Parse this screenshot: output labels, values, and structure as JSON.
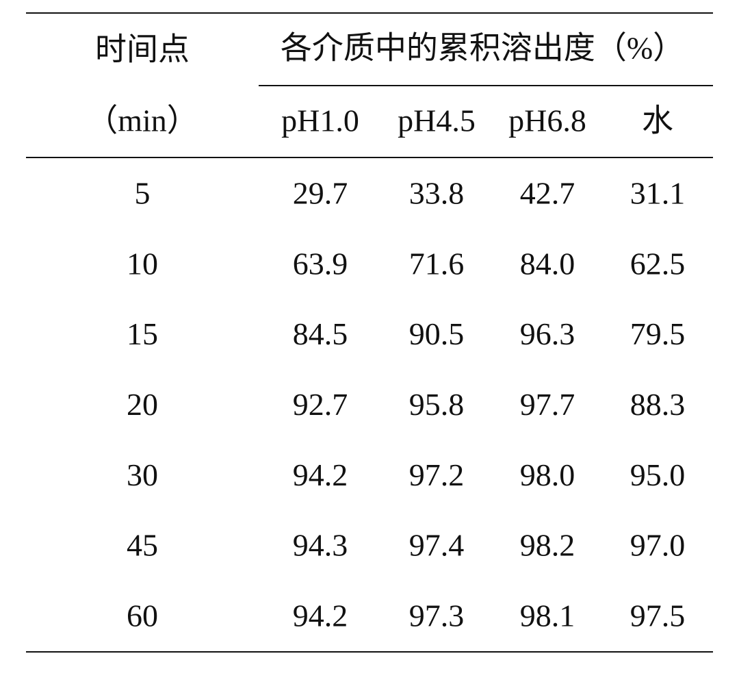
{
  "table": {
    "header": {
      "time_label": "时间点",
      "time_unit": "（min）",
      "group_label": "各介质中的累积溶出度（%）",
      "columns": [
        "pH1.0",
        "pH4.5",
        "pH6.8",
        "水"
      ]
    },
    "rows": [
      [
        "5",
        "29.7",
        "33.8",
        "42.7",
        "31.1"
      ],
      [
        "10",
        "63.9",
        "71.6",
        "84.0",
        "62.5"
      ],
      [
        "15",
        "84.5",
        "90.5",
        "96.3",
        "79.5"
      ],
      [
        "20",
        "92.7",
        "95.8",
        "97.7",
        "88.3"
      ],
      [
        "30",
        "94.2",
        "97.2",
        "98.0",
        "95.0"
      ],
      [
        "45",
        "94.3",
        "97.4",
        "98.2",
        "97.0"
      ],
      [
        "60",
        "94.2",
        "97.3",
        "98.1",
        "97.5"
      ]
    ]
  }
}
